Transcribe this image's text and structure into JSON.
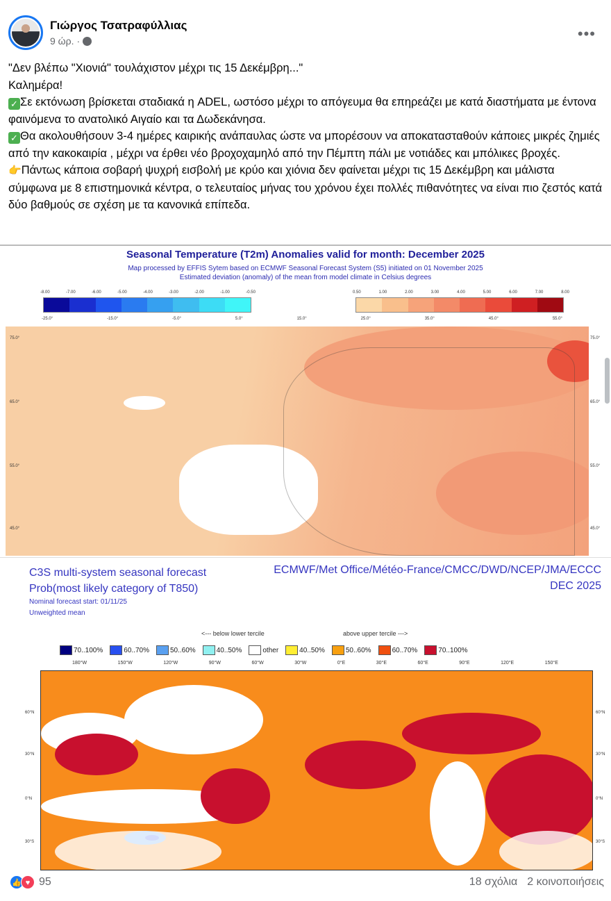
{
  "post": {
    "author": "Γιώργος Τσατραφύλλιας",
    "time": "9 ώρ.",
    "separator": "·",
    "audience_icon": "globe-icon",
    "more_icon": "more-options-icon",
    "text": [
      "\"Δεν βλέπω \"Χιονιά\" τουλάχιστον μέχρι τις 15 Δεκέμβρη...\"",
      "Καλημέρα!",
      "Σε εκτόνωση βρίσκεται σταδιακά η ADEL, ωστόσο μέχρι το απόγευμα θα επηρεάζει με κατά διαστήματα με έντονα φαινόμενα το ανατολικό Αιγαίο και τα Δωδεκάνησα.",
      "Θα ακολουθήσουν 3-4 ημέρες καιρικής ανάπαυλας ώστε  να μπορέσουν να  αποκατασταθούν κάποιες μικρές ζημιές από την κακοκαιρία , μέχρι να έρθει  νέο  βροχοχαμηλό από την Πέμπτη πάλι με νοτιάδες και μπόλικες βροχές.",
      "Πάντως κάποια σοβαρή ψυχρή εισβολή με κρύο και χιόνια δεν φαίνεται μέχρι τις 15 Δεκέμβρη και μάλιστα σύμφωνα με 8 επιστημονικά κέντρα, ο τελευταίος μήνας του χρόνου έχει πολλές πιθανότητες να είναι πιο ζεστός  κατά δύο βαθμούς  σε σχέση με τα κανονικά επίπεδα."
    ],
    "check_emoji": "✓",
    "hand_emoji": "👉"
  },
  "map1": {
    "title": "Seasonal Temperature (T2m) Anomalies valid for month: December 2025",
    "subtitle": "Map processed by EFFIS Sytem based on ECMWF Seasonal Forecast System (S5) initiated on 01 November 2025",
    "subtitle2": "Estimated deviation (anomaly) of the mean from model climate in Celsius degrees",
    "cold_ticks": [
      "-8.00",
      "-7.00",
      "-6.00",
      "-5.00",
      "-4.00",
      "-3.00",
      "-2.00",
      "-1.00",
      "-0.50"
    ],
    "warm_ticks": [
      "0.50",
      "1.00",
      "2.00",
      "3.00",
      "4.00",
      "5.00",
      "6.00",
      "7.00",
      "8.00"
    ],
    "cold_colors": [
      "#0a0a9a",
      "#1a2fd0",
      "#1f55ee",
      "#2a7bf0",
      "#36a0f0",
      "#3fbdf0",
      "#3ddcf5",
      "#40f5f8"
    ],
    "warm_colors": [
      "#fbd8a8",
      "#f9bf8c",
      "#f6a37a",
      "#f38a68",
      "#ef6c52",
      "#ea4b3a",
      "#cf1f22",
      "#a00a12"
    ],
    "lon_labels": [
      "-25.0°",
      "-15.0°",
      "-5.0°",
      "5.0°",
      "15.0°",
      "25.0°",
      "35.0°",
      "45.0°",
      "55.0°"
    ],
    "lat_labels": [
      "75.0°",
      "65.0°",
      "55.0°",
      "45.0°"
    ]
  },
  "map2": {
    "title_line1": "C3S multi-system seasonal forecast",
    "title_line2": "Prob(most likely category of T850)",
    "centers": "ECMWF/Met Office/Météo-France/CMCC/DWD/NCEP/JMA/ECCC",
    "month": "DEC 2025",
    "start": "Nominal forecast start: 01/11/25",
    "mean": "Unweighted mean",
    "below": "<--- below lower tercile",
    "above": "above upper tercile --->",
    "legend": [
      {
        "label": "70..100%",
        "color": "#00007f"
      },
      {
        "label": "60..70%",
        "color": "#2850f0"
      },
      {
        "label": "50..60%",
        "color": "#5aa0f0"
      },
      {
        "label": "40..50%",
        "color": "#90f0f0"
      },
      {
        "label": "other",
        "color": "#ffffff"
      },
      {
        "label": "40..50%",
        "color": "#ffee33"
      },
      {
        "label": "50..60%",
        "color": "#f8a010"
      },
      {
        "label": "60..70%",
        "color": "#f05010"
      },
      {
        "label": "70..100%",
        "color": "#c8102e"
      }
    ],
    "lon_labels": [
      "180°W",
      "150°W",
      "120°W",
      "90°W",
      "60°W",
      "30°W",
      "0°E",
      "30°E",
      "60°E",
      "90°E",
      "120°E",
      "150°E"
    ],
    "lat_labels": [
      "60°N",
      "30°N",
      "0°N",
      "30°S"
    ]
  },
  "footer": {
    "reactions_count": "95",
    "comments": "18 σχόλια",
    "shares": "2 κοινοποιήσεις"
  }
}
